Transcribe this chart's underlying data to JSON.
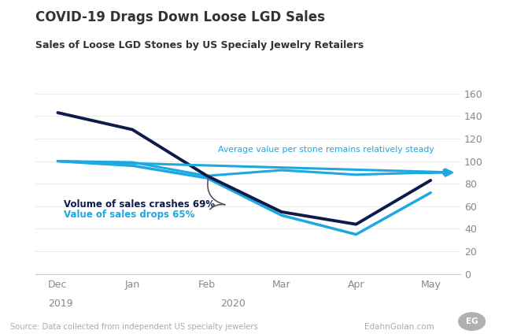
{
  "title": "COVID-19 Drags Down Loose LGD Sales",
  "subtitle": "Sales of Loose LGD Stones by US Specialy Jewelry Retailers",
  "x_labels": [
    "Dec",
    "Jan",
    "Feb",
    "Mar",
    "Apr",
    "May"
  ],
  "volume_y": [
    143,
    128,
    87,
    55,
    44,
    83
  ],
  "value_y": [
    100,
    96,
    85,
    52,
    35,
    72
  ],
  "avg_y": [
    100,
    99,
    87,
    92,
    88,
    90
  ],
  "volume_color": "#0d1b4b",
  "value_color": "#1ea8e0",
  "avg_color": "#1ea8e0",
  "ylim": [
    0,
    160
  ],
  "yticks": [
    0,
    20,
    40,
    60,
    80,
    100,
    120,
    140,
    160
  ],
  "annotation_volume": "Volume of sales crashes 69%",
  "annotation_value": "Value of sales drops 65%",
  "annotation_avg": "Average value per stone remains relatively steady",
  "source_text": "Source: Data collected from independent US specialty jewelers",
  "brand_text": "EdahnGolan.com",
  "background_color": "#ffffff",
  "spine_color": "#cccccc",
  "grid_color": "#e8e8e8",
  "tick_label_color": "#888888",
  "title_color": "#333333",
  "subtitle_color": "#333333"
}
